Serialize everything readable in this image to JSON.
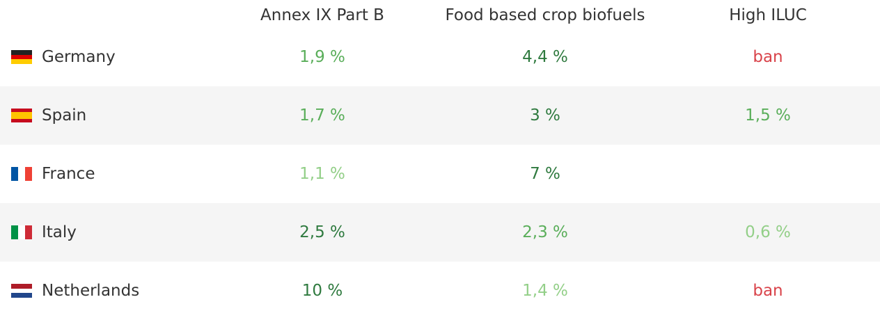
{
  "table": {
    "header": [
      "Annex IX Part B",
      "Food based crop biofuels",
      "High ILUC"
    ],
    "rows": [
      [
        "Germany",
        "1,9 %",
        "4,4 %",
        "ban"
      ],
      [
        "Spain",
        "1,7 %",
        "3 %",
        "1,5 %"
      ],
      [
        "France",
        "1,1 %",
        "7 %",
        null
      ],
      [
        "Italy",
        "2,5 %",
        "2,3 %",
        "0,6 %"
      ],
      [
        "Netherlands",
        "10 %",
        "1,4 %",
        "ban"
      ]
    ]
  }
}
